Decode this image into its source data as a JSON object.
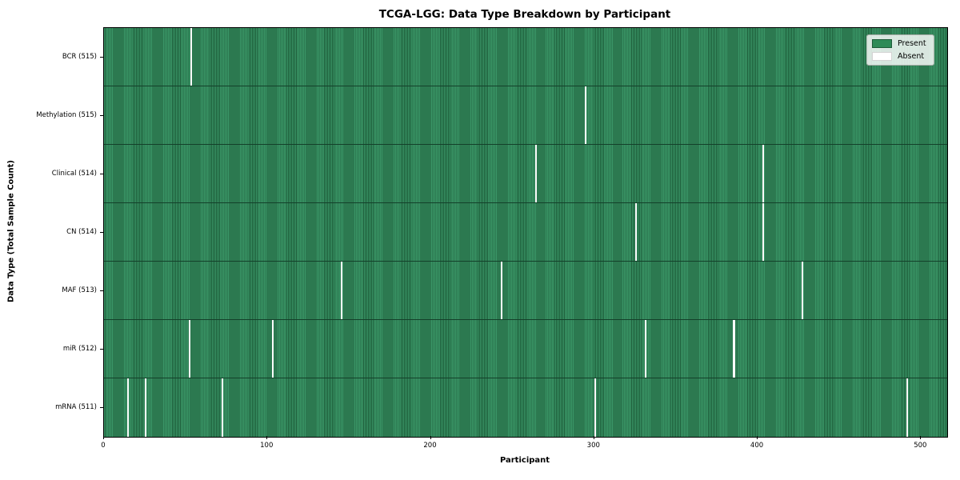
{
  "figure": {
    "title": "TCGA-LGG: Data Type Breakdown by Participant",
    "xlabel": "Participant",
    "ylabel": "Data Type (Total Sample Count)"
  },
  "legend": {
    "items": [
      {
        "label": "Present",
        "color": "#2e8b57"
      },
      {
        "label": "Absent",
        "color": "#ffffff"
      }
    ]
  },
  "chart_data": {
    "type": "heatmap",
    "title": "TCGA-LGG: Data Type Breakdown by Participant",
    "xlabel": "Participant",
    "ylabel": "Data Type (Total Sample Count)",
    "x_ticks": [
      0,
      100,
      200,
      300,
      400,
      500
    ],
    "xlim": [
      0,
      516
    ],
    "n_participants": 516,
    "legend_position": "upper right",
    "grid": false,
    "colors": {
      "present_fill": "#2e8b57",
      "present_edge": "#1d5c39",
      "absent": "#ffffff",
      "row_separator": "#14402a"
    },
    "rows": [
      {
        "label": "BCR (515)",
        "present_count": 515,
        "absent_participants": [
          53
        ]
      },
      {
        "label": "Methylation (515)",
        "present_count": 515,
        "absent_participants": [
          294
        ]
      },
      {
        "label": "Clinical (514)",
        "present_count": 514,
        "absent_participants": [
          264,
          403
        ]
      },
      {
        "label": "CN (514)",
        "present_count": 514,
        "absent_participants": [
          325,
          403
        ]
      },
      {
        "label": "MAF (513)",
        "present_count": 513,
        "absent_participants": [
          145,
          243,
          427
        ]
      },
      {
        "label": "miR (512)",
        "present_count": 512,
        "absent_participants": [
          52,
          103,
          331,
          385
        ]
      },
      {
        "label": "mRNA (511)",
        "present_count": 511,
        "absent_participants": [
          14,
          25,
          72,
          300,
          491
        ]
      }
    ]
  }
}
